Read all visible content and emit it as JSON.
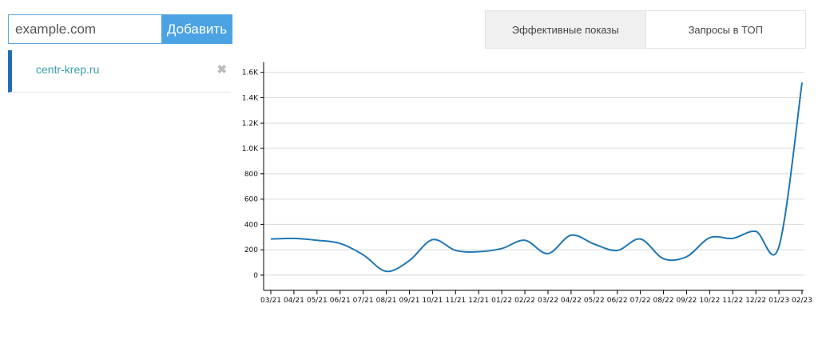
{
  "form": {
    "input_placeholder": "example.com",
    "add_label": "Добавить"
  },
  "sites": [
    {
      "label": "centr-krep.ru"
    }
  ],
  "tabs": [
    {
      "label": "Эффективные показы",
      "active": true
    },
    {
      "label": "Запросы в ТОП",
      "active": false
    }
  ],
  "colors": {
    "accent": "#4ba3e3",
    "line": "#1f77b4",
    "site_border": "#1f6fb3",
    "site_link": "#3aa0a8"
  },
  "icons": {
    "remove": "close-icon"
  },
  "chart_data": {
    "type": "line",
    "categories": [
      "03/21",
      "04/21",
      "05/21",
      "06/21",
      "07/21",
      "08/21",
      "09/21",
      "10/21",
      "11/21",
      "12/21",
      "01/22",
      "02/22",
      "03/22",
      "04/22",
      "05/22",
      "06/22",
      "07/22",
      "08/22",
      "09/22",
      "10/22",
      "11/22",
      "12/22",
      "01/23",
      "02/23"
    ],
    "values": [
      285,
      290,
      275,
      250,
      160,
      30,
      115,
      280,
      195,
      185,
      210,
      275,
      170,
      315,
      245,
      195,
      285,
      130,
      145,
      295,
      290,
      345,
      225,
      1520
    ],
    "yticks": [
      0,
      200,
      400,
      600,
      800,
      1000,
      1200,
      1400,
      1600
    ],
    "ytick_labels": [
      "0",
      "200",
      "400",
      "600",
      "800",
      "1.0K",
      "1.2K",
      "1.4K",
      "1.6K"
    ],
    "ylim": [
      -120,
      1680
    ],
    "grid": true
  }
}
